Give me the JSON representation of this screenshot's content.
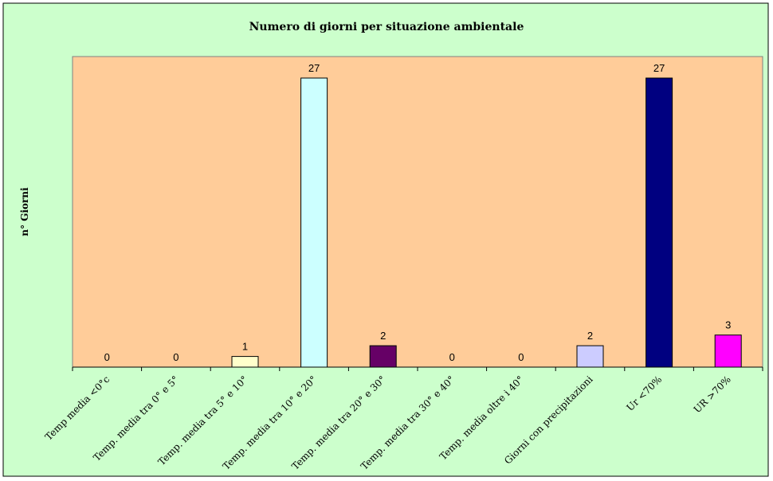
{
  "colors": {
    "chart_area": "#ccffcc",
    "plot_area": "#ffcc99",
    "axis": "#000000"
  },
  "chart_data": {
    "type": "bar",
    "title": "Numero di giorni per situazione ambientale",
    "xlabel": "",
    "ylabel": "n° Giorni",
    "ylim": [
      0,
      27
    ],
    "grid": false,
    "legend": "none",
    "categories": [
      "Temp media <0°c",
      "Temp. media tra 0° e 5°",
      "Temp. media tra 5° e 10°",
      "Temp. media tra 10° e 20°",
      "Temp. media tra 20° e 30°",
      "Temp. media tra 30° e 40°",
      "Temp. media oltre i 40°",
      "Giorni con precipitazioni",
      "Ur <70%",
      "UR >70%"
    ],
    "values": [
      0,
      0,
      1,
      27,
      2,
      0,
      0,
      2,
      27,
      3
    ],
    "bar_colors": [
      "#ffffcc",
      "#ffffcc",
      "#ffffcc",
      "#ccffff",
      "#660066",
      "#ffffcc",
      "#ffffcc",
      "#ccccff",
      "#000080",
      "#ff00ff"
    ]
  }
}
